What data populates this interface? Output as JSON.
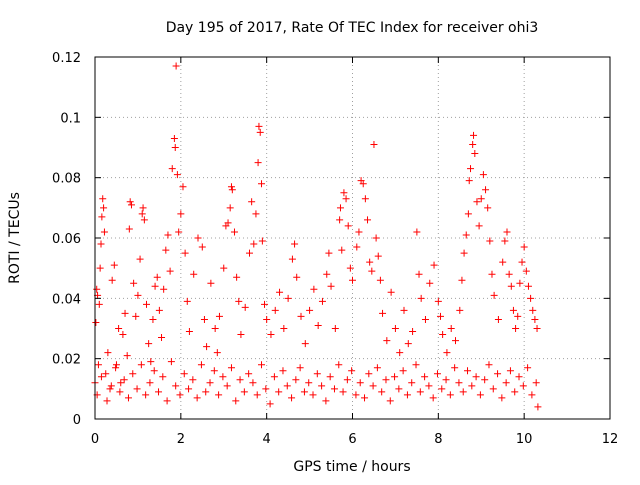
{
  "chart_data": {
    "type": "scatter",
    "title": "Day 195 of 2017, Rate Of TEC Index for receiver ohi3",
    "xlabel": "GPS time / hours",
    "ylabel": "ROTI / TECUs",
    "xlim": [
      0,
      12
    ],
    "ylim": [
      0,
      0.12
    ],
    "x_ticks": [
      0,
      2,
      4,
      6,
      8,
      10,
      12
    ],
    "y_ticks": [
      0,
      0.02,
      0.04,
      0.06,
      0.08,
      0.1,
      0.12
    ],
    "x_tick_labels": [
      "0",
      "2",
      "4",
      "6",
      "8",
      "10",
      "12"
    ],
    "y_tick_labels": [
      "0",
      "0.02",
      "0.04",
      "0.06",
      "0.08",
      "0.1",
      "0.12"
    ],
    "grid": true,
    "marker": "plus",
    "color": "#ff0000",
    "series": [
      {
        "points": [
          [
            0.0,
            0.012
          ],
          [
            0.02,
            0.032
          ],
          [
            0.04,
            0.043
          ],
          [
            0.06,
            0.041
          ],
          [
            0.08,
            0.018
          ],
          [
            0.1,
            0.038
          ],
          [
            0.12,
            0.05
          ],
          [
            0.14,
            0.058
          ],
          [
            0.16,
            0.067
          ],
          [
            0.18,
            0.073
          ],
          [
            0.2,
            0.07
          ],
          [
            0.22,
            0.062
          ],
          [
            0.25,
            0.015
          ],
          [
            0.3,
            0.022
          ],
          [
            0.35,
            0.01
          ],
          [
            0.4,
            0.046
          ],
          [
            0.45,
            0.051
          ],
          [
            0.5,
            0.018
          ],
          [
            0.55,
            0.03
          ],
          [
            0.6,
            0.012
          ],
          [
            0.65,
            0.028
          ],
          [
            0.7,
            0.035
          ],
          [
            0.75,
            0.021
          ],
          [
            0.8,
            0.063
          ],
          [
            0.82,
            0.072
          ],
          [
            0.85,
            0.071
          ],
          [
            0.9,
            0.045
          ],
          [
            0.95,
            0.034
          ],
          [
            1.0,
            0.041
          ],
          [
            1.05,
            0.053
          ],
          [
            1.1,
            0.068
          ],
          [
            1.12,
            0.07
          ],
          [
            1.15,
            0.066
          ],
          [
            1.2,
            0.038
          ],
          [
            1.25,
            0.025
          ],
          [
            1.3,
            0.019
          ],
          [
            1.35,
            0.033
          ],
          [
            1.4,
            0.044
          ],
          [
            1.45,
            0.047
          ],
          [
            1.5,
            0.036
          ],
          [
            1.55,
            0.027
          ],
          [
            1.6,
            0.043
          ],
          [
            1.65,
            0.056
          ],
          [
            1.7,
            0.061
          ],
          [
            1.75,
            0.049
          ],
          [
            1.8,
            0.083
          ],
          [
            1.85,
            0.093
          ],
          [
            1.87,
            0.09
          ],
          [
            1.89,
            0.117
          ],
          [
            1.92,
            0.081
          ],
          [
            1.95,
            0.062
          ],
          [
            2.0,
            0.068
          ],
          [
            2.05,
            0.077
          ],
          [
            2.1,
            0.055
          ],
          [
            2.15,
            0.039
          ],
          [
            2.2,
            0.029
          ],
          [
            2.3,
            0.048
          ],
          [
            2.4,
            0.06
          ],
          [
            2.5,
            0.057
          ],
          [
            2.55,
            0.033
          ],
          [
            2.6,
            0.024
          ],
          [
            2.7,
            0.045
          ],
          [
            2.8,
            0.03
          ],
          [
            2.85,
            0.022
          ],
          [
            2.9,
            0.034
          ],
          [
            3.0,
            0.05
          ],
          [
            3.05,
            0.064
          ],
          [
            3.1,
            0.065
          ],
          [
            3.15,
            0.07
          ],
          [
            3.18,
            0.077
          ],
          [
            3.2,
            0.076
          ],
          [
            3.25,
            0.062
          ],
          [
            3.3,
            0.047
          ],
          [
            3.35,
            0.039
          ],
          [
            3.4,
            0.028
          ],
          [
            3.5,
            0.037
          ],
          [
            3.6,
            0.055
          ],
          [
            3.65,
            0.072
          ],
          [
            3.7,
            0.058
          ],
          [
            3.75,
            0.068
          ],
          [
            3.8,
            0.085
          ],
          [
            3.82,
            0.097
          ],
          [
            3.85,
            0.095
          ],
          [
            3.88,
            0.078
          ],
          [
            3.9,
            0.059
          ],
          [
            3.95,
            0.038
          ],
          [
            4.0,
            0.033
          ],
          [
            4.1,
            0.028
          ],
          [
            4.2,
            0.036
          ],
          [
            4.3,
            0.042
          ],
          [
            4.4,
            0.03
          ],
          [
            4.5,
            0.04
          ],
          [
            4.6,
            0.053
          ],
          [
            4.65,
            0.058
          ],
          [
            4.7,
            0.047
          ],
          [
            4.8,
            0.034
          ],
          [
            4.9,
            0.025
          ],
          [
            5.0,
            0.036
          ],
          [
            5.1,
            0.043
          ],
          [
            5.2,
            0.031
          ],
          [
            5.3,
            0.039
          ],
          [
            5.4,
            0.048
          ],
          [
            5.45,
            0.055
          ],
          [
            5.5,
            0.044
          ],
          [
            5.6,
            0.03
          ],
          [
            5.7,
            0.066
          ],
          [
            5.72,
            0.07
          ],
          [
            5.75,
            0.056
          ],
          [
            5.8,
            0.075
          ],
          [
            5.85,
            0.073
          ],
          [
            5.9,
            0.064
          ],
          [
            5.95,
            0.05
          ],
          [
            6.0,
            0.046
          ],
          [
            6.1,
            0.057
          ],
          [
            6.15,
            0.062
          ],
          [
            6.2,
            0.079
          ],
          [
            6.25,
            0.078
          ],
          [
            6.3,
            0.073
          ],
          [
            6.35,
            0.066
          ],
          [
            6.4,
            0.052
          ],
          [
            6.45,
            0.049
          ],
          [
            6.5,
            0.091
          ],
          [
            6.55,
            0.06
          ],
          [
            6.6,
            0.054
          ],
          [
            6.65,
            0.046
          ],
          [
            6.7,
            0.035
          ],
          [
            6.8,
            0.026
          ],
          [
            6.9,
            0.042
          ],
          [
            7.0,
            0.03
          ],
          [
            7.1,
            0.022
          ],
          [
            7.2,
            0.036
          ],
          [
            7.3,
            0.025
          ],
          [
            7.4,
            0.029
          ],
          [
            7.5,
            0.062
          ],
          [
            7.55,
            0.048
          ],
          [
            7.6,
            0.04
          ],
          [
            7.7,
            0.033
          ],
          [
            7.8,
            0.045
          ],
          [
            7.9,
            0.051
          ],
          [
            8.0,
            0.039
          ],
          [
            8.05,
            0.034
          ],
          [
            8.1,
            0.028
          ],
          [
            8.2,
            0.022
          ],
          [
            8.3,
            0.03
          ],
          [
            8.4,
            0.026
          ],
          [
            8.5,
            0.036
          ],
          [
            8.55,
            0.046
          ],
          [
            8.6,
            0.055
          ],
          [
            8.65,
            0.061
          ],
          [
            8.7,
            0.068
          ],
          [
            8.72,
            0.079
          ],
          [
            8.75,
            0.083
          ],
          [
            8.8,
            0.091
          ],
          [
            8.82,
            0.094
          ],
          [
            8.85,
            0.088
          ],
          [
            8.9,
            0.072
          ],
          [
            8.95,
            0.064
          ],
          [
            9.0,
            0.073
          ],
          [
            9.05,
            0.081
          ],
          [
            9.1,
            0.076
          ],
          [
            9.15,
            0.07
          ],
          [
            9.2,
            0.059
          ],
          [
            9.25,
            0.048
          ],
          [
            9.3,
            0.041
          ],
          [
            9.4,
            0.033
          ],
          [
            9.5,
            0.052
          ],
          [
            9.55,
            0.059
          ],
          [
            9.6,
            0.062
          ],
          [
            9.65,
            0.048
          ],
          [
            9.7,
            0.044
          ],
          [
            9.75,
            0.036
          ],
          [
            9.8,
            0.03
          ],
          [
            9.85,
            0.034
          ],
          [
            9.9,
            0.045
          ],
          [
            9.95,
            0.052
          ],
          [
            10.0,
            0.057
          ],
          [
            10.05,
            0.049
          ],
          [
            10.1,
            0.044
          ],
          [
            10.15,
            0.04
          ],
          [
            10.2,
            0.036
          ],
          [
            10.25,
            0.033
          ],
          [
            10.3,
            0.03
          ],
          [
            0.05,
            0.008
          ],
          [
            0.15,
            0.014
          ],
          [
            0.28,
            0.006
          ],
          [
            0.38,
            0.011
          ],
          [
            0.48,
            0.017
          ],
          [
            0.58,
            0.009
          ],
          [
            0.68,
            0.013
          ],
          [
            0.78,
            0.007
          ],
          [
            0.88,
            0.015
          ],
          [
            0.98,
            0.01
          ],
          [
            1.08,
            0.018
          ],
          [
            1.18,
            0.008
          ],
          [
            1.28,
            0.012
          ],
          [
            1.38,
            0.016
          ],
          [
            1.48,
            0.009
          ],
          [
            1.58,
            0.014
          ],
          [
            1.68,
            0.006
          ],
          [
            1.78,
            0.019
          ],
          [
            1.88,
            0.011
          ],
          [
            1.98,
            0.008
          ],
          [
            2.08,
            0.015
          ],
          [
            2.18,
            0.01
          ],
          [
            2.28,
            0.013
          ],
          [
            2.38,
            0.007
          ],
          [
            2.48,
            0.018
          ],
          [
            2.58,
            0.009
          ],
          [
            2.68,
            0.012
          ],
          [
            2.78,
            0.016
          ],
          [
            2.88,
            0.008
          ],
          [
            2.98,
            0.014
          ],
          [
            3.08,
            0.011
          ],
          [
            3.18,
            0.017
          ],
          [
            3.28,
            0.006
          ],
          [
            3.38,
            0.013
          ],
          [
            3.48,
            0.009
          ],
          [
            3.58,
            0.015
          ],
          [
            3.68,
            0.012
          ],
          [
            3.78,
            0.008
          ],
          [
            3.88,
            0.018
          ],
          [
            3.98,
            0.01
          ],
          [
            4.08,
            0.005
          ],
          [
            4.18,
            0.014
          ],
          [
            4.28,
            0.009
          ],
          [
            4.38,
            0.016
          ],
          [
            4.48,
            0.011
          ],
          [
            4.58,
            0.007
          ],
          [
            4.68,
            0.013
          ],
          [
            4.78,
            0.017
          ],
          [
            4.88,
            0.009
          ],
          [
            4.98,
            0.012
          ],
          [
            5.08,
            0.008
          ],
          [
            5.18,
            0.015
          ],
          [
            5.28,
            0.011
          ],
          [
            5.38,
            0.006
          ],
          [
            5.48,
            0.014
          ],
          [
            5.58,
            0.01
          ],
          [
            5.68,
            0.018
          ],
          [
            5.78,
            0.009
          ],
          [
            5.88,
            0.013
          ],
          [
            5.98,
            0.016
          ],
          [
            6.08,
            0.008
          ],
          [
            6.18,
            0.012
          ],
          [
            6.28,
            0.007
          ],
          [
            6.38,
            0.015
          ],
          [
            6.48,
            0.011
          ],
          [
            6.58,
            0.017
          ],
          [
            6.68,
            0.009
          ],
          [
            6.78,
            0.013
          ],
          [
            6.88,
            0.006
          ],
          [
            6.98,
            0.014
          ],
          [
            7.08,
            0.01
          ],
          [
            7.18,
            0.016
          ],
          [
            7.28,
            0.008
          ],
          [
            7.38,
            0.012
          ],
          [
            7.48,
            0.018
          ],
          [
            7.58,
            0.009
          ],
          [
            7.68,
            0.014
          ],
          [
            7.78,
            0.011
          ],
          [
            7.88,
            0.007
          ],
          [
            7.98,
            0.015
          ],
          [
            8.08,
            0.01
          ],
          [
            8.18,
            0.013
          ],
          [
            8.28,
            0.008
          ],
          [
            8.38,
            0.017
          ],
          [
            8.48,
            0.012
          ],
          [
            8.58,
            0.009
          ],
          [
            8.68,
            0.016
          ],
          [
            8.78,
            0.011
          ],
          [
            8.88,
            0.014
          ],
          [
            8.98,
            0.008
          ],
          [
            9.08,
            0.013
          ],
          [
            9.18,
            0.018
          ],
          [
            9.28,
            0.01
          ],
          [
            9.38,
            0.015
          ],
          [
            9.48,
            0.007
          ],
          [
            9.58,
            0.012
          ],
          [
            9.68,
            0.016
          ],
          [
            9.78,
            0.009
          ],
          [
            9.88,
            0.014
          ],
          [
            9.98,
            0.011
          ],
          [
            10.08,
            0.017
          ],
          [
            10.18,
            0.008
          ],
          [
            10.28,
            0.012
          ],
          [
            10.32,
            0.004
          ]
        ]
      }
    ]
  }
}
